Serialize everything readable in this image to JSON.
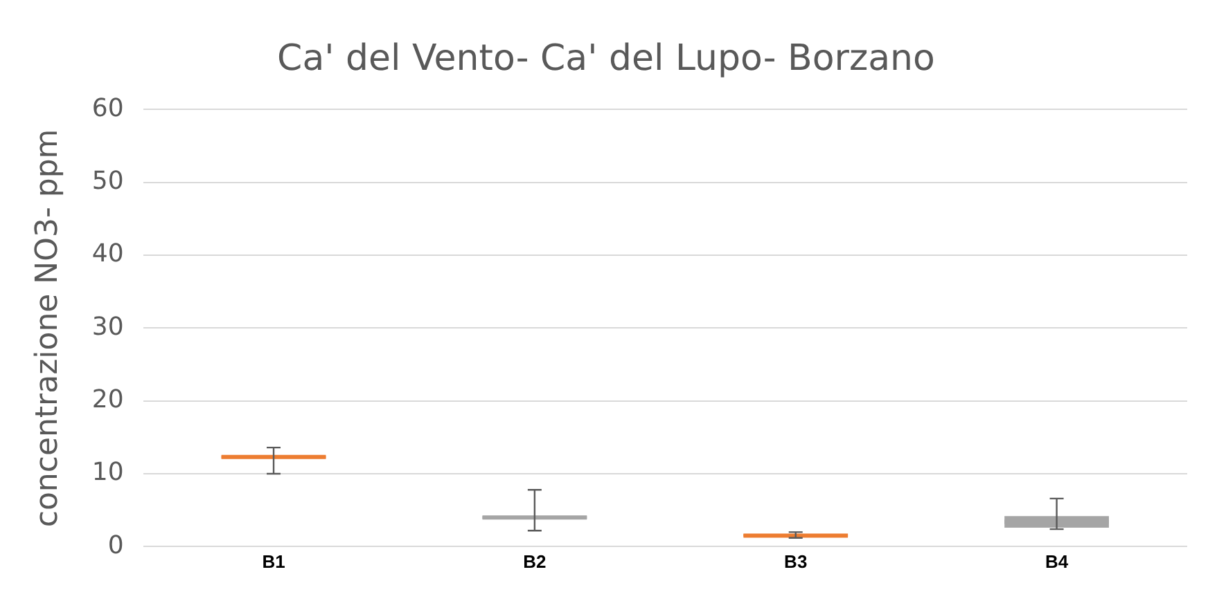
{
  "chart_data": {
    "type": "box",
    "title": "Ca' del Vento- Ca' del Lupo- Borzano",
    "ylabel": "concentrazione NO3- ppm",
    "categories": [
      "B1",
      "B2",
      "B3",
      "B4"
    ],
    "boxes": [
      {
        "low": 10,
        "q1": 12.1,
        "median": 12.3,
        "q3": 12.5,
        "high": 13.6
      },
      {
        "low": 2.2,
        "q1": 3.8,
        "median": 4,
        "q3": 4.2,
        "high": 7.8
      },
      {
        "low": 1.2,
        "q1": 1.4,
        "median": 1.5,
        "q3": 1.7,
        "high": 2
      },
      {
        "low": 2.4,
        "q1": 2.6,
        "median": 3.4,
        "q3": 4.2,
        "high": 6.6
      }
    ],
    "colors": [
      "#ed7d31",
      "#a5a5a5",
      "#ed7d31",
      "#a5a5a5"
    ],
    "ylim": [
      0,
      60
    ],
    "yticks": [
      0,
      10,
      20,
      30,
      40,
      50,
      60
    ],
    "grid": "y",
    "legend": false
  }
}
